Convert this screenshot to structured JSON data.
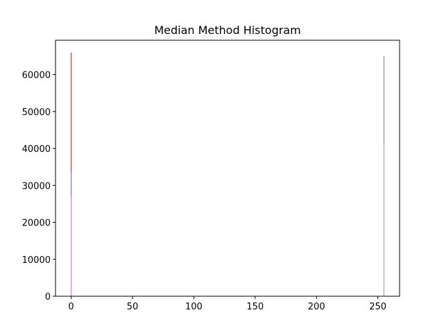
{
  "chart_data": {
    "type": "bar",
    "title": "Median Method Histogram",
    "xlabel": "",
    "ylabel": "",
    "xlim": [
      -12.75,
      267.75
    ],
    "ylim": [
      0,
      69300
    ],
    "xticks": [
      0,
      50,
      100,
      150,
      200,
      250
    ],
    "yticks": [
      0,
      10000,
      20000,
      30000,
      40000,
      50000,
      60000
    ],
    "grid": false,
    "series": [
      {
        "color": "#d62728",
        "x": [
          0
        ],
        "values": [
          66000
        ]
      },
      {
        "color": "#9467bd",
        "x": [
          0
        ],
        "values": [
          33500
        ]
      },
      {
        "color": "#bb88ff",
        "x": [
          0
        ],
        "values": [
          27000
        ]
      },
      {
        "color": "#9467bd",
        "x": [
          255
        ],
        "values": [
          65000
        ]
      },
      {
        "color": "#bb88ff",
        "x": [
          255
        ],
        "values": [
          41000
        ]
      }
    ]
  }
}
